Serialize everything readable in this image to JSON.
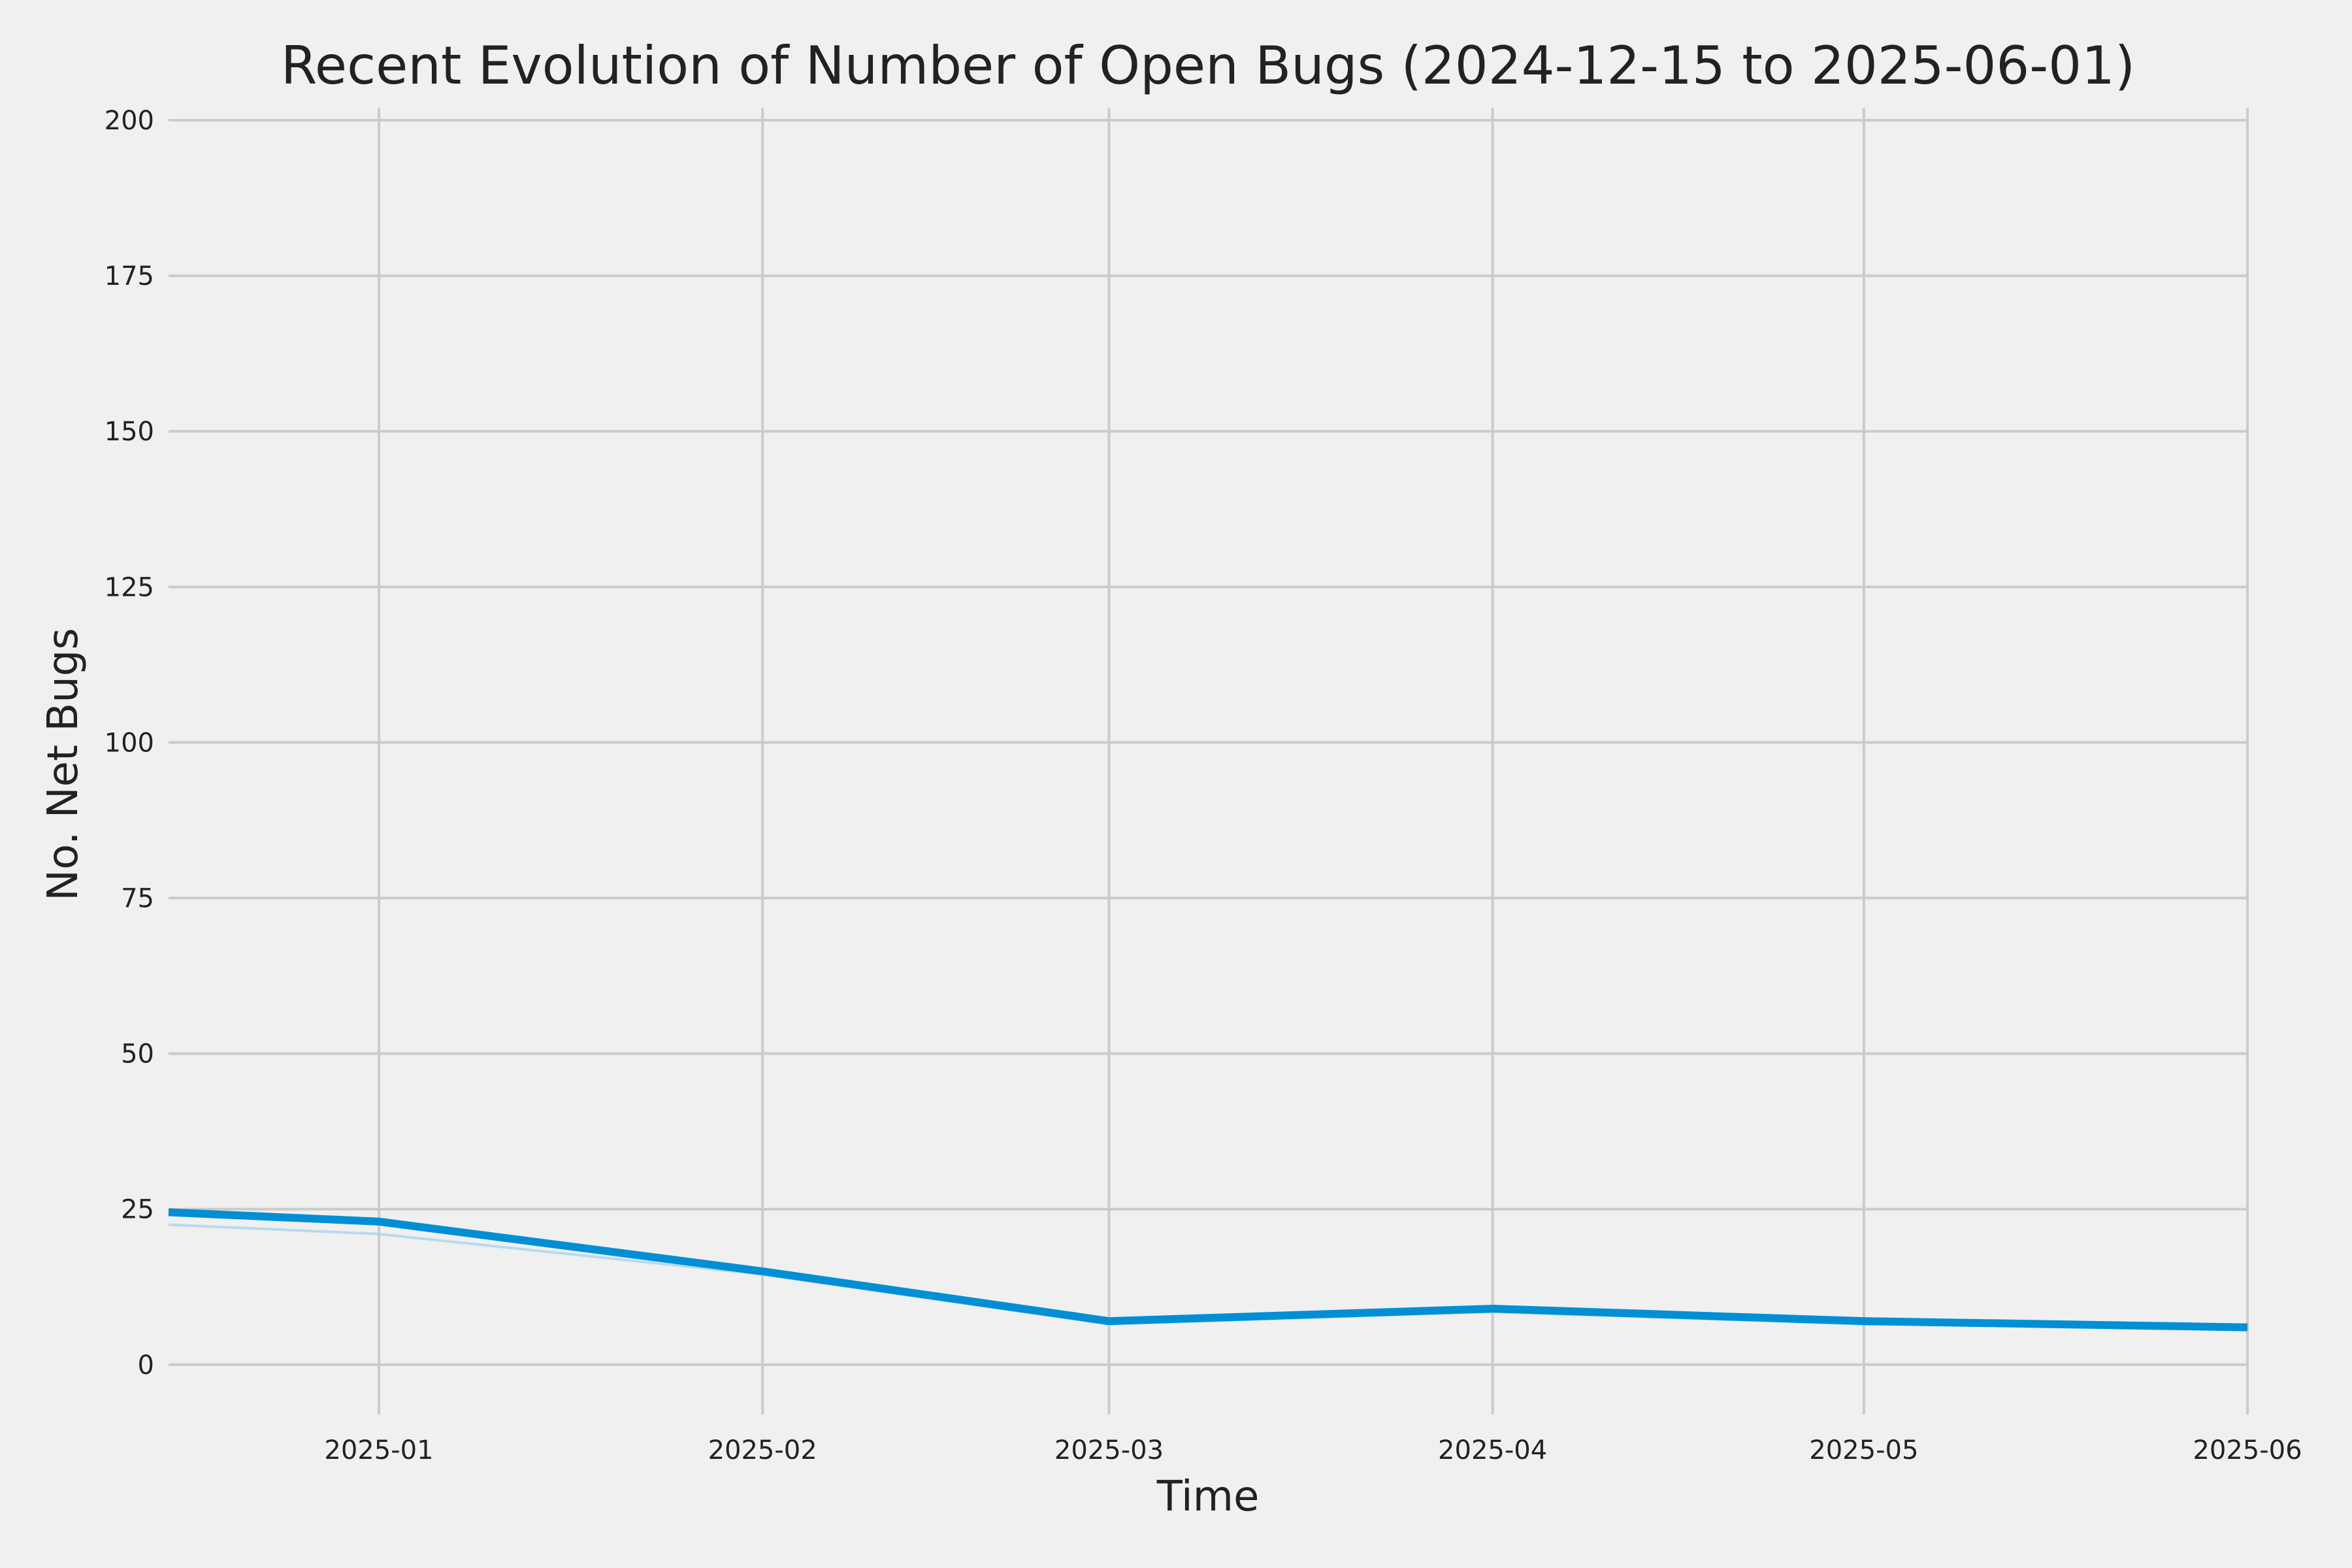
{
  "chart_data": {
    "type": "line",
    "title": "Recent Evolution of Number of Open Bugs (2024-12-15 to 2025-06-01)",
    "xlabel": "Time",
    "ylabel": "No. Net Bugs",
    "x_type": "date",
    "xlim": [
      "2024-12-15",
      "2025-06-01"
    ],
    "ylim": [
      -8,
      202
    ],
    "x_ticks": [
      {
        "date": "2025-01-01",
        "label": "2025-01"
      },
      {
        "date": "2025-02-01",
        "label": "2025-02"
      },
      {
        "date": "2025-03-01",
        "label": "2025-03"
      },
      {
        "date": "2025-04-01",
        "label": "2025-04"
      },
      {
        "date": "2025-05-01",
        "label": "2025-05"
      },
      {
        "date": "2025-06-01",
        "label": "2025-06"
      }
    ],
    "y_ticks": [
      0,
      25,
      50,
      75,
      100,
      125,
      150,
      175,
      200
    ],
    "grid": true,
    "series": [
      {
        "color": "#008fd5",
        "points": [
          {
            "x": "2024-12-15",
            "y": 24.5
          },
          {
            "x": "2025-01-01",
            "y": 23
          },
          {
            "x": "2025-02-01",
            "y": 15
          },
          {
            "x": "2025-03-01",
            "y": 7
          },
          {
            "x": "2025-04-01",
            "y": 9
          },
          {
            "x": "2025-05-01",
            "y": 7
          },
          {
            "x": "2025-06-01",
            "y": 6
          }
        ]
      },
      {
        "color": "#a9d4ee",
        "points": [
          {
            "x": "2024-12-15",
            "y": 22.5
          },
          {
            "x": "2025-01-01",
            "y": 21
          },
          {
            "x": "2025-02-01",
            "y": 14.5
          },
          {
            "x": "2025-03-01",
            "y": 6.5
          },
          {
            "x": "2025-04-01",
            "y": 8.5
          },
          {
            "x": "2025-05-01",
            "y": 6.5
          },
          {
            "x": "2025-06-01",
            "y": 6
          }
        ]
      }
    ]
  }
}
